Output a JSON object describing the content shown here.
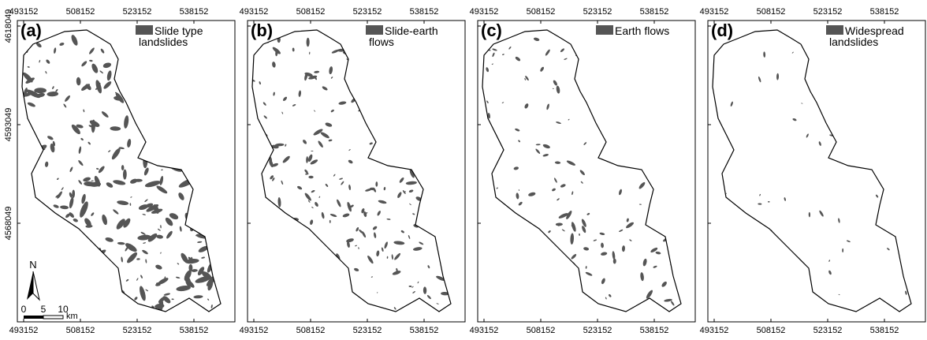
{
  "x_ticks": [
    493152,
    508152,
    523152,
    538152
  ],
  "y_ticks": [
    4618049,
    4593049,
    4568049
  ],
  "panels": [
    {
      "label": "(a)",
      "legend": [
        "Slide type",
        "landslides"
      ]
    },
    {
      "label": "(b)",
      "legend": [
        "Slide-earth",
        "flows"
      ]
    },
    {
      "label": "(c)",
      "legend": [
        "Earth flows"
      ]
    },
    {
      "label": "(d)",
      "legend": [
        "Widespread",
        "landslides"
      ]
    }
  ],
  "scale_bar": {
    "north": "N",
    "labels": [
      "0",
      "5",
      "10"
    ],
    "unit": "km"
  }
}
